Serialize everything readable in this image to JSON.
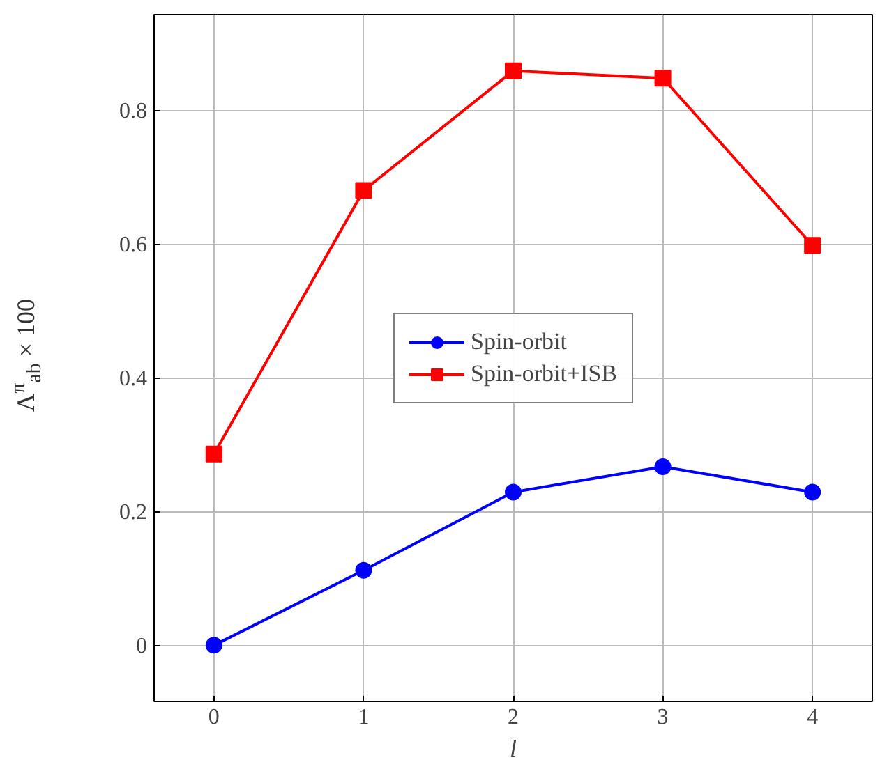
{
  "chart_data": {
    "type": "line",
    "xlabel": "l",
    "ylabel": "Λ$^{π}$$_{ab}$ × 100",
    "x": [
      0,
      1,
      2,
      3,
      4
    ],
    "series": [
      {
        "name": "Spin-orbit",
        "color": "#0000ff",
        "marker": "circle",
        "values": [
          0,
          0.112,
          0.229,
          0.267,
          0.229
        ]
      },
      {
        "name": "Spin-orbit+ISB",
        "color": "#ff0000",
        "marker": "square",
        "values": [
          0.286,
          0.68,
          0.859,
          0.848,
          0.598
        ]
      }
    ],
    "xlim": [
      -0.4,
      4.4
    ],
    "xticks": [
      0,
      1,
      2,
      3,
      4
    ],
    "ylim": [
      -0.084,
      0.943
    ],
    "yticks": [
      0,
      0.2,
      0.4,
      0.6,
      0.8
    ],
    "grid": true,
    "legend": "center",
    "line_style": "solid"
  }
}
